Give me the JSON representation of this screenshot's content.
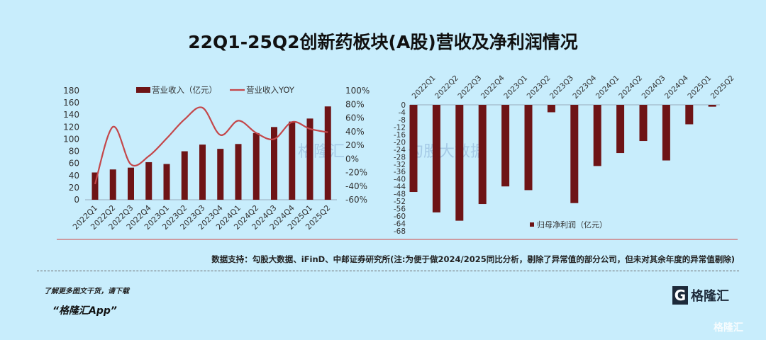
{
  "title": "22Q1-25Q2创新药板块(A股)营收及净利润情况",
  "colors": {
    "bar": "#6e1416",
    "line": "#c4474a",
    "background": "#c8edfc"
  },
  "chart_data": [
    {
      "type": "bar+line",
      "categories": [
        "2022Q1",
        "2022Q2",
        "2022Q3",
        "2022Q4",
        "2023Q1",
        "2023Q2",
        "2023Q3",
        "2023Q4",
        "2024Q1",
        "2024Q2",
        "2024Q3",
        "2024Q4",
        "2025Q1",
        "2025Q2"
      ],
      "series": [
        {
          "name": "营业收入（亿元）",
          "type": "bar",
          "axis": "left",
          "values": [
            45,
            50,
            53,
            62,
            59,
            80,
            91,
            84,
            92,
            110,
            120,
            129,
            134,
            154
          ]
        },
        {
          "name": "营业收入YOY",
          "type": "line",
          "axis": "right",
          "values": [
            -37,
            47,
            -8,
            4,
            30,
            58,
            75,
            35,
            56,
            38,
            29,
            54,
            44,
            39
          ]
        }
      ],
      "y_left": {
        "range": [
          0,
          180
        ],
        "ticks": [
          "0",
          "20",
          "40",
          "60",
          "80",
          "100",
          "120",
          "140",
          "160",
          "180"
        ]
      },
      "y_right": {
        "range": [
          -60,
          100
        ],
        "ticks": [
          "-60%",
          "-40%",
          "-20%",
          "0%",
          "20%",
          "40%",
          "60%",
          "80%",
          "100%"
        ]
      },
      "legend": "top"
    },
    {
      "type": "bar",
      "categories": [
        "2022Q1",
        "2022Q2",
        "2022Q3",
        "2022Q4",
        "2023Q1",
        "2023Q2",
        "2023Q3",
        "2023Q4",
        "2024Q1",
        "2024Q2",
        "2024Q3",
        "2024Q4",
        "2025Q1",
        "2025Q2"
      ],
      "series": [
        {
          "name": "归母净利润（亿元）",
          "values": [
            -47,
            -58,
            -62.5,
            -53.5,
            -44,
            -46,
            -4,
            -53,
            -33,
            -26,
            -19.5,
            -30,
            -10.5,
            -1
          ]
        }
      ],
      "y": {
        "range": [
          -68,
          0
        ],
        "ticks": [
          "0",
          "-4",
          "-8",
          "-12",
          "-16",
          "-20",
          "-24",
          "-28",
          "-32",
          "-36",
          "-40",
          "-44",
          "-48",
          "-52",
          "-56",
          "-60",
          "-64",
          "-68"
        ]
      },
      "legend": "bottom-center"
    }
  ],
  "source": "数据支持：勾股大数据、iFinD、中邮证券研究所(注:为便于做2024/2025同比分析，剔除了异常值的部分公司，但未对其余年度的异常值剔除)",
  "footer": {
    "download_text": "了解更多图文干货，请下载",
    "app_name": "“格隆汇App”",
    "logo_text": "格隆汇",
    "watermark": "格隆汇"
  },
  "watermarks": {
    "left": "格隆汇",
    "right": "勾股大数据"
  }
}
